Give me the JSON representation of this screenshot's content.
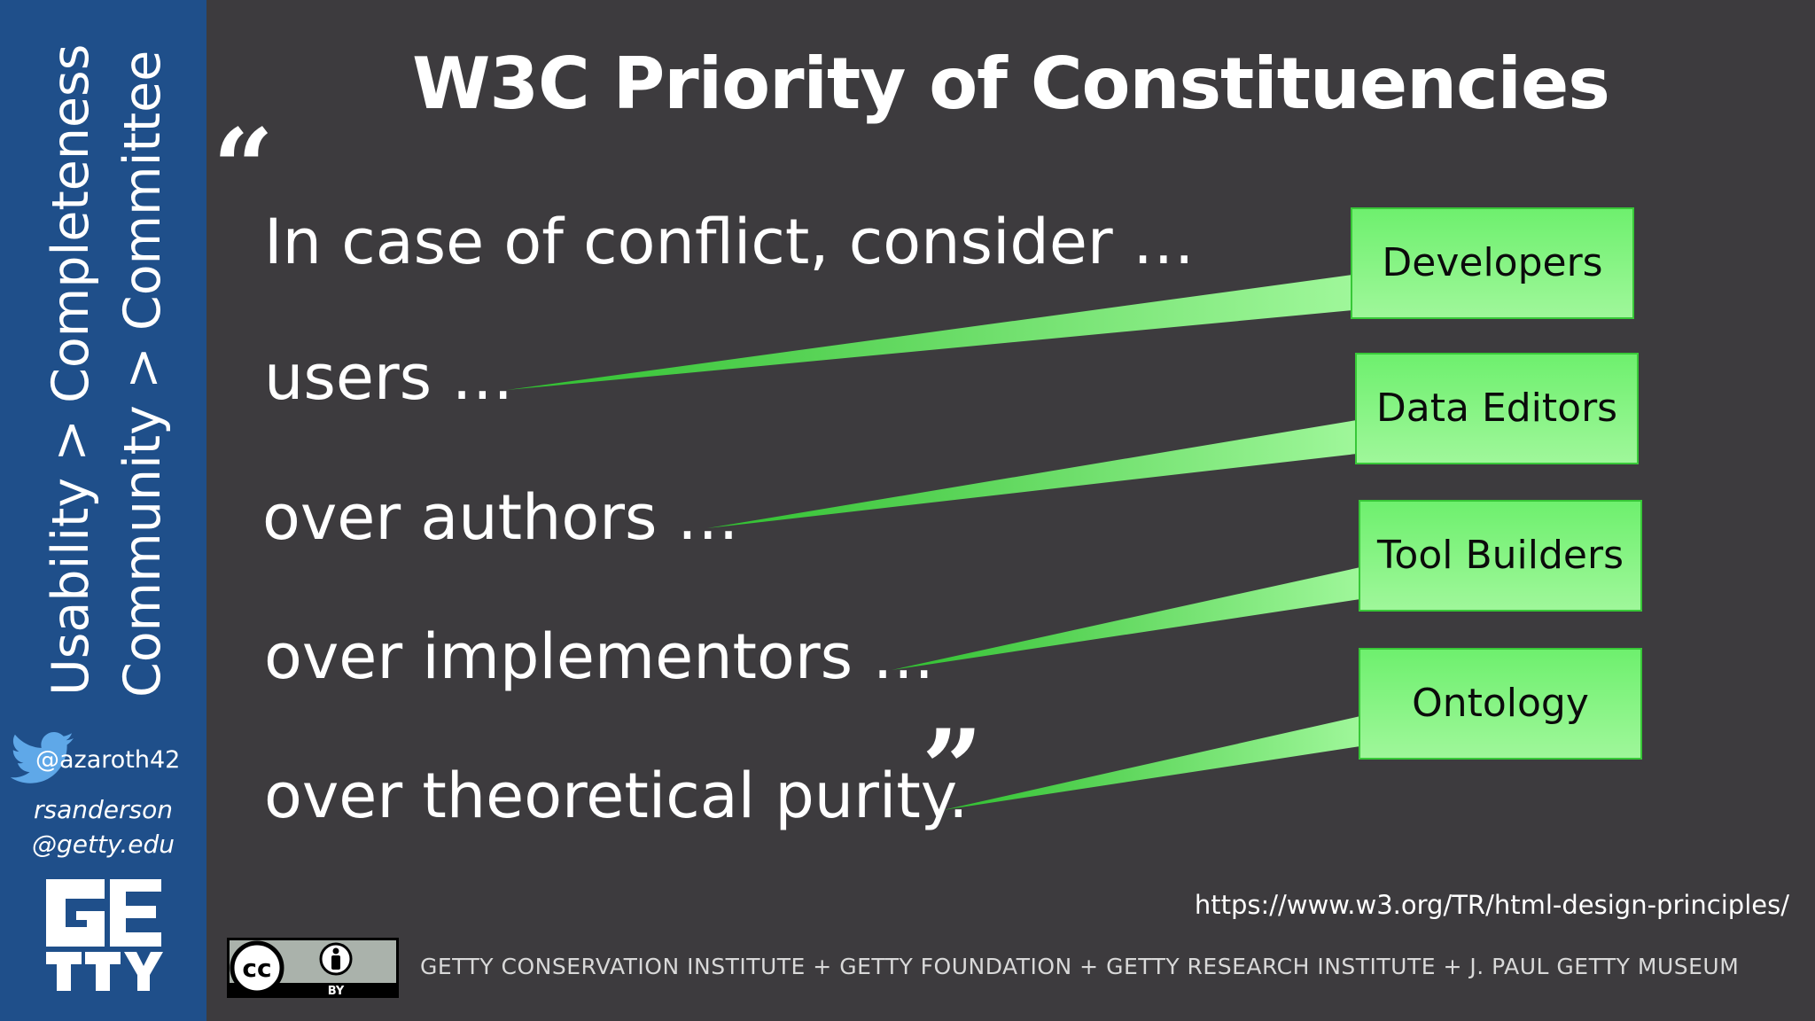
{
  "title": "W3C Priority of Constituencies",
  "sidebar": {
    "line1": "Usability > Completeness",
    "line2": "Community > Committee",
    "twitter_handle": "@azaroth42",
    "email_line1": "rsanderson",
    "email_line2": "@getty.edu",
    "logo_name": "getty-logo"
  },
  "quote": {
    "open_mark": "“",
    "close_mark": "”",
    "lines": [
      "In case of conflict, consider …",
      "users …",
      "over authors …",
      "over implementors …",
      "over theoretical purity."
    ]
  },
  "callouts": [
    {
      "label": "Developers"
    },
    {
      "label": "Data Editors"
    },
    {
      "label": "Tool Builders"
    },
    {
      "label": "Ontology"
    }
  ],
  "url": "https://www.w3.org/TR/html-design-principles/",
  "license": {
    "badge_text": "BY",
    "icons": [
      "cc-icon",
      "attribution-icon"
    ]
  },
  "footer": "GETTY CONSERVATION INSTITUTE + GETTY FOUNDATION + GETTY RESEARCH INSTITUTE + J. PAUL GETTY MUSEUM",
  "colors": {
    "background": "#3d3b3e",
    "sidebar": "#1f4f8a",
    "callout_fill": "#7ff27c",
    "callout_border": "#38c838",
    "text": "#ffffff"
  }
}
